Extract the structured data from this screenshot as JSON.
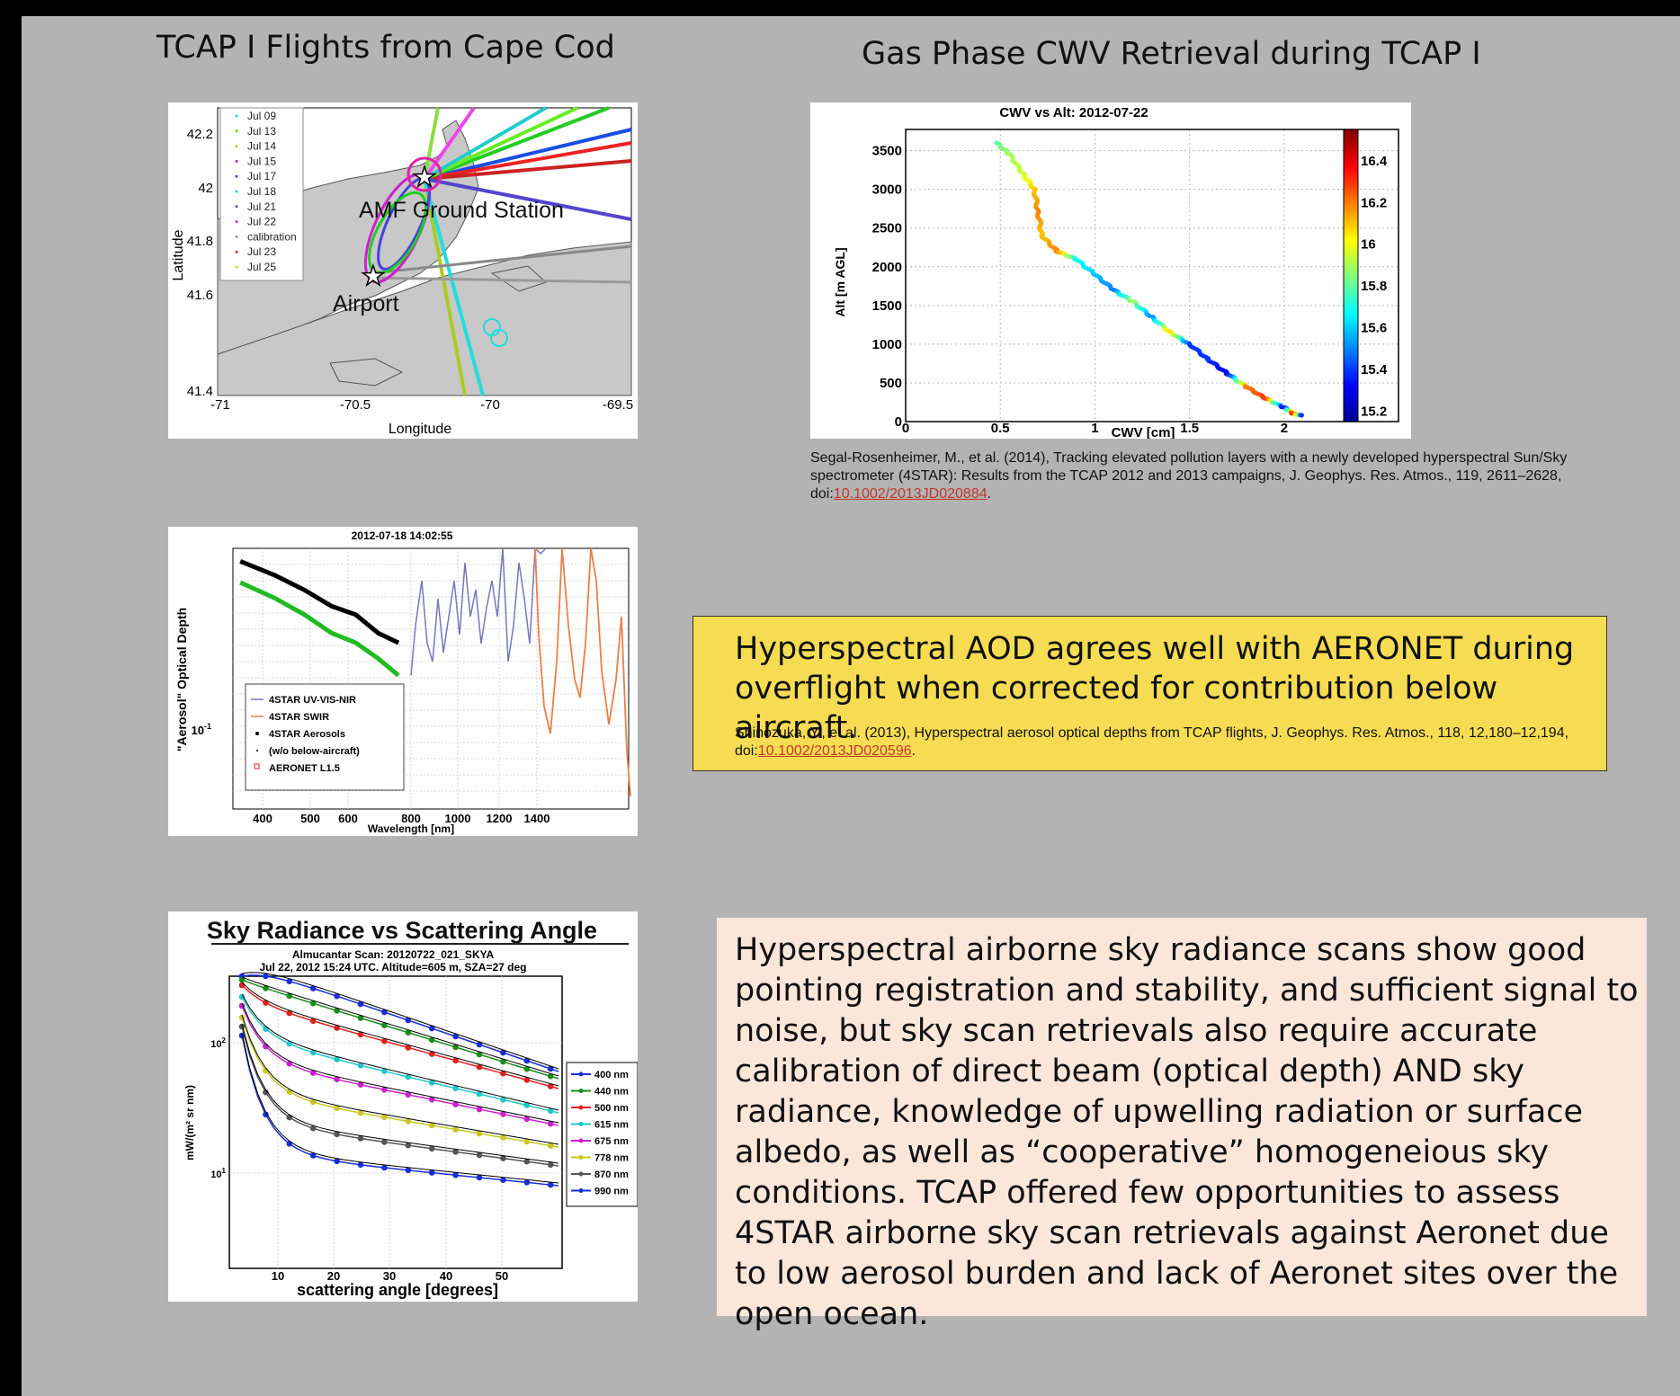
{
  "titles": {
    "left": "TCAP I Flights from Cape Cod",
    "right": "Gas Phase CWV Retrieval during TCAP I"
  },
  "map_panel": {
    "ylabel": "Latitude",
    "xlabel": "Longitude",
    "yticks": [
      "42.2",
      "42",
      "41.8",
      "41.6",
      "41.4"
    ],
    "xticks": [
      "-71",
      "-70.5",
      "-70",
      "-69.5"
    ],
    "legend": [
      "Jul 09",
      "Jul 13",
      "Jul 14",
      "Jul 15",
      "Jul 17",
      "Jul 18",
      "Jul 21",
      "Jul 22",
      "calibration",
      "Jul 23",
      "Jul 25"
    ],
    "legend_colors": [
      "#00e0e0",
      "#66dd00",
      "#aacc00",
      "#cc00cc",
      "#4444dd",
      "#22cccc",
      "#6644cc",
      "#dd22aa",
      "#999999",
      "#dd2222",
      "#dddd22"
    ],
    "label_station": "AMF Ground Station",
    "label_airport": "Airport"
  },
  "cwv_panel": {
    "chart_data": {
      "type": "scatter",
      "title": "CWV vs Alt: 2012-07-22",
      "xlabel": "CWV [cm]",
      "ylabel": "Alt [m AGL]",
      "xlim": [
        0,
        2.2
      ],
      "ylim": [
        0,
        3600
      ],
      "xticks": [
        "0",
        "0.5",
        "1",
        "1.5",
        "2"
      ],
      "yticks": [
        "0",
        "500",
        "1000",
        "1500",
        "2000",
        "2500",
        "3000",
        "3500"
      ],
      "colorbar_ticks": [
        "16.4",
        "16.2",
        "16",
        "15.8",
        "15.6",
        "15.4",
        "15.2"
      ],
      "colorbar_range": [
        15.15,
        16.55
      ],
      "grid": true,
      "points": [
        [
          0.48,
          3600,
          15.8
        ],
        [
          0.55,
          3450,
          15.9
        ],
        [
          0.62,
          3200,
          15.95
        ],
        [
          0.68,
          3000,
          16.1
        ],
        [
          0.7,
          2700,
          16.2
        ],
        [
          0.72,
          2400,
          16.1
        ],
        [
          0.8,
          2200,
          16.2
        ],
        [
          0.9,
          2100,
          15.7
        ],
        [
          1.0,
          1900,
          15.6
        ],
        [
          1.1,
          1700,
          15.5
        ],
        [
          1.2,
          1550,
          15.9
        ],
        [
          1.3,
          1350,
          15.5
        ],
        [
          1.4,
          1150,
          16.1
        ],
        [
          1.5,
          1000,
          15.4
        ],
        [
          1.6,
          800,
          15.4
        ],
        [
          1.7,
          620,
          15.3
        ],
        [
          1.8,
          450,
          16.2
        ],
        [
          1.9,
          300,
          16.3
        ],
        [
          2.0,
          180,
          15.3
        ],
        [
          2.05,
          100,
          16.4
        ],
        [
          2.1,
          80,
          15.3
        ]
      ]
    }
  },
  "citation1": {
    "text": "Segal-Rosenheimer, M., et al. (2014), Tracking elevated pollution layers with a newly developed hyperspectral Sun/Sky spectrometer (4STAR): Results from the TCAP 2012 and 2013 campaigns, J. Geophys. Res. Atmos., 119, 2611–2628, doi:",
    "link": "10.1002/2013JD020884",
    "end": "."
  },
  "aod_panel": {
    "chart_data": {
      "type": "line",
      "title": "2012-07-18 14:02:55",
      "xlabel": "Wavelength [nm]",
      "ylabel": "\"Aerosol\" Optical Depth",
      "xticks": [
        "400",
        "500",
        "600",
        "800",
        "1000",
        "1200",
        "1400"
      ],
      "ytick": "10",
      "ytick_exp": "-1",
      "legend": [
        "4STAR UV-VIS-NIR",
        "4STAR SWIR",
        "4STAR Aerosols",
        "(w/o below-aircraft)",
        "AERONET L1.5"
      ],
      "legend_colors": [
        "#7777bb",
        "#e8804a",
        "#000000",
        "#000000",
        "#dd2222"
      ],
      "series": [
        {
          "name": "4STAR Aerosols",
          "x": [
            350,
            400,
            450,
            500,
            550,
            600,
            650
          ],
          "y": [
            0.3,
            0.28,
            0.26,
            0.24,
            0.23,
            0.21,
            0.2
          ]
        },
        {
          "name": "(w/o below-aircraft)",
          "x": [
            350,
            400,
            450,
            500,
            550,
            600,
            650
          ],
          "y": [
            0.27,
            0.25,
            0.23,
            0.21,
            0.2,
            0.185,
            0.17
          ]
        }
      ]
    }
  },
  "box1": {
    "headline": "Hyperspectral AOD agrees well with AERONET during overflight when corrected for contribution below aircraft.",
    "citation_text": "Shinozuka, Y., et al. (2013), Hyperspectral aerosol optical depths from TCAP flights, J. Geophys. Res. Atmos., 118, 12,180–12,194, doi:",
    "citation_link": "10.1002/2013JD020596",
    "citation_end": "."
  },
  "sky_panel": {
    "chart_data": {
      "type": "line",
      "title": "Sky Radiance vs Scattering Angle",
      "subtitle1": "Almucantar Scan: 20120722_021_SKYA",
      "subtitle2": "Jul 22, 2012 15:24 UTC. Altitude=605 m, SZA=27 deg",
      "xlabel": "scattering angle [degrees]",
      "ylabel": "mW/(m² sr nm)",
      "xticks": [
        "10",
        "20",
        "30",
        "40",
        "50"
      ],
      "yticks": [
        "10",
        "10"
      ],
      "ytick_exps": [
        "2",
        "1"
      ],
      "legend": [
        "400 nm",
        "440 nm",
        "500 nm",
        "615 nm",
        "675 nm",
        "778 nm",
        "870 nm",
        "990 nm"
      ],
      "legend_colors": [
        "#1a2ed8",
        "#1a8c1a",
        "#e02020",
        "#20c8c8",
        "#cc20cc",
        "#c8c820",
        "#555555",
        "#1a2ed8"
      ]
    }
  },
  "box2": {
    "text": "Hyperspectral airborne sky radiance scans show good pointing registration and stability, and sufficient signal to noise, but sky scan retrievals also require accurate calibration of direct beam (optical depth) AND sky radiance, knowledge of upwelling radiation or surface albedo, as well as “cooperative” homogeneious sky conditions. TCAP offered few opportunities to assess 4STAR airborne sky scan retrievals against Aeronet due to low aerosol burden and lack of Aeronet sites over the open ocean."
  }
}
